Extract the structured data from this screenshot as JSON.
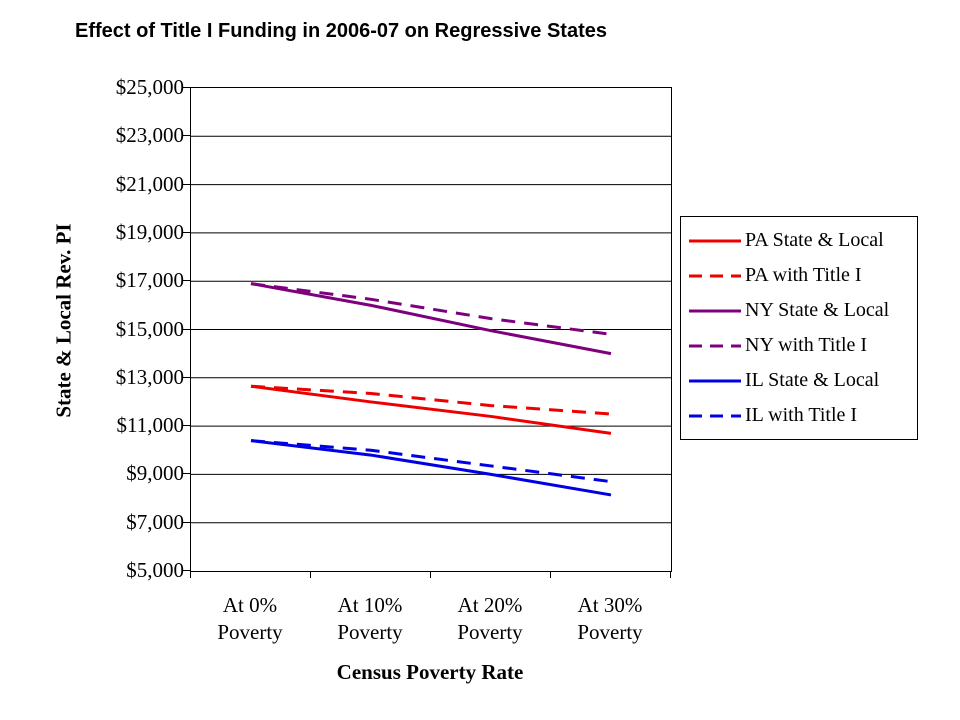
{
  "title": "Effect of Title I Funding in 2006-07 on Regressive States",
  "chart_data": {
    "type": "line",
    "title": "Effect of Title I Funding in 2006-07 on Regressive States",
    "xlabel": "Census Poverty Rate",
    "ylabel": "State & Local Rev. PI",
    "categories": [
      "At 0%\nPoverty",
      "At 10%\nPoverty",
      "At 20%\nPoverty",
      "At 30%\nPoverty"
    ],
    "series": [
      {
        "name": "PA State & Local",
        "color": "#ee0000",
        "style": "solid",
        "values": [
          12650,
          12000,
          11400,
          10700
        ]
      },
      {
        "name": "PA with Title I",
        "color": "#ee0000",
        "style": "dashed",
        "values": [
          12650,
          12350,
          11850,
          11500
        ]
      },
      {
        "name": "NY State & Local",
        "color": "#7d007d",
        "style": "solid",
        "values": [
          16900,
          16000,
          14950,
          14000
        ]
      },
      {
        "name": "NY with Title I",
        "color": "#7d007d",
        "style": "dashed",
        "values": [
          16900,
          16250,
          15450,
          14800
        ]
      },
      {
        "name": "IL State & Local",
        "color": "#0000e6",
        "style": "solid",
        "values": [
          10400,
          9800,
          9000,
          8150
        ]
      },
      {
        "name": "IL with Title I",
        "color": "#0000e6",
        "style": "dashed",
        "values": [
          10400,
          10000,
          9350,
          8700
        ]
      }
    ],
    "ylim": [
      5000,
      25000
    ],
    "ytick_step": 2000,
    "ytick_labels": [
      "$25,000",
      "$23,000",
      "$21,000",
      "$19,000",
      "$17,000",
      "$15,000",
      "$13,000",
      "$11,000",
      "$9,000",
      "$7,000",
      "$5,000"
    ],
    "grid": "horizontal-major",
    "gridline_color": "#000000",
    "legend_position": "right",
    "legend_border_color": "#000000"
  }
}
